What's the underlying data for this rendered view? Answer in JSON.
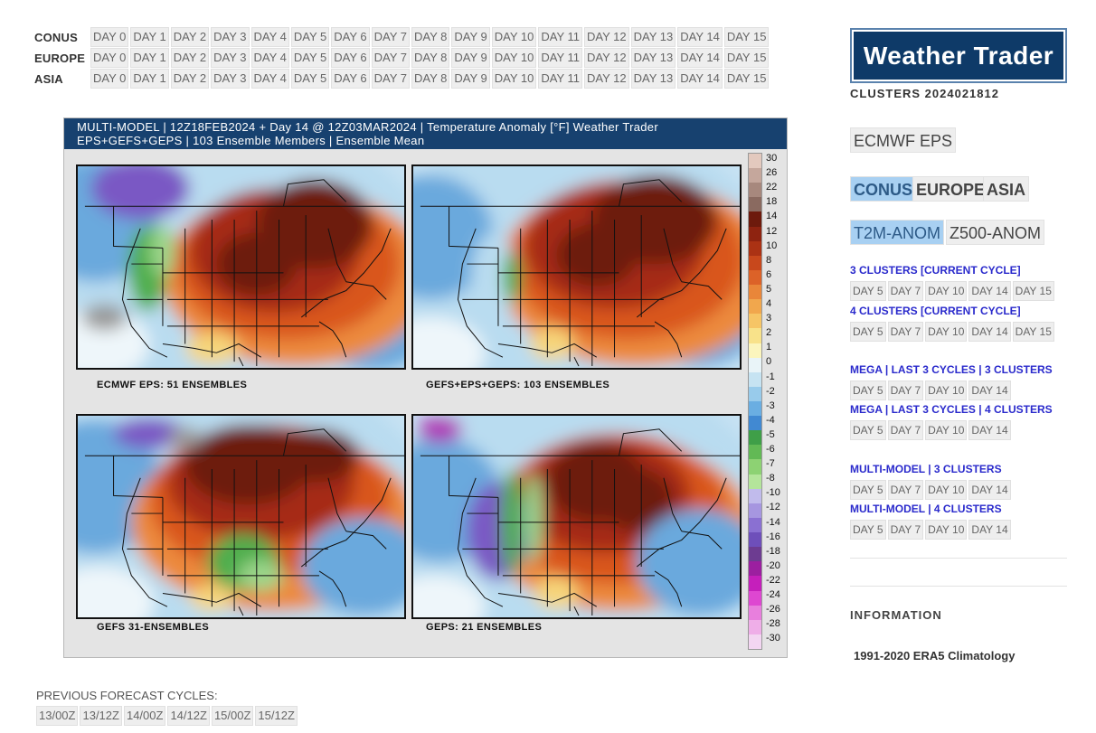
{
  "nav": {
    "days": [
      "DAY 0",
      "DAY 1",
      "DAY 2",
      "DAY 3",
      "DAY 4",
      "DAY 5",
      "DAY 6",
      "DAY 7",
      "DAY 8",
      "DAY 9",
      "DAY 10",
      "DAY 11",
      "DAY 12",
      "DAY 13",
      "DAY 14",
      "DAY 15"
    ],
    "regions": [
      "CONUS",
      "EUROPE",
      "ASIA"
    ]
  },
  "figure": {
    "header_line1": "MULTI-MODEL | 12Z18FEB2024 + Day 14 @ 12Z03MAR2024 | Temperature Anomaly [°F] Weather Trader",
    "header_line2": "EPS+GEFS+GEPS | 103 Ensemble Members | Ensemble Mean",
    "panels": [
      {
        "label": "ECMWF EPS: 51 ENSEMBLES"
      },
      {
        "label": "GEFS+EPS+GEPS: 103 ENSEMBLES"
      },
      {
        "label": "GEFS 31-ENSEMBLES"
      },
      {
        "label": "GEPS: 21 ENSEMBLES"
      }
    ],
    "colorbar": {
      "labels": [
        "30",
        "26",
        "22",
        "18",
        "14",
        "12",
        "10",
        "8",
        "6",
        "5",
        "4",
        "3",
        "2",
        "1",
        "0",
        "-1",
        "-2",
        "-3",
        "-4",
        "-5",
        "-6",
        "-7",
        "-8",
        "-10",
        "-12",
        "-14",
        "-16",
        "-18",
        "-20",
        "-22",
        "-24",
        "-26",
        "-28",
        "-30"
      ],
      "colors": [
        "#e3c9be",
        "#c5a79c",
        "#a7887d",
        "#8a6a60",
        "#6d1a0c",
        "#8e2310",
        "#ab3214",
        "#c8481c",
        "#dc6228",
        "#e98639",
        "#f1a74d",
        "#f6c566",
        "#f8e28a",
        "#fbf5bd",
        "#e9f4f8",
        "#c6e3f2",
        "#98cbeb",
        "#6aaee2",
        "#4189d2",
        "#3f9f48",
        "#62b955",
        "#8dd273",
        "#b4e59b",
        "#c1bbec",
        "#a696e0",
        "#8a70d2",
        "#6e4fba",
        "#6d3c91",
        "#9c1fa0",
        "#c51fbb",
        "#de47d1",
        "#e87fdd",
        "#efaee8",
        "#f3d6f2"
      ]
    }
  },
  "prev_cycles": {
    "title": "PREVIOUS FORECAST CYCLES:",
    "items": [
      "13/00Z",
      "13/12Z",
      "14/00Z",
      "14/12Z",
      "15/00Z",
      "15/12Z"
    ]
  },
  "sidebar": {
    "logo": "Weather Trader",
    "clusters_title": "CLUSTERS 2024021812",
    "model_btn": "ECMWF EPS",
    "region_btns": [
      "CONUS",
      "EUROPE",
      "ASIA"
    ],
    "var_btns": [
      "T2M-ANOM",
      "Z500-ANOM"
    ],
    "groups": [
      {
        "title": "3 CLUSTERS [CURRENT CYCLE]",
        "days": [
          "DAY 5",
          "DAY 7",
          "DAY 10",
          "DAY 14",
          "DAY 15"
        ]
      },
      {
        "title": "4 CLUSTERS [CURRENT CYCLE]",
        "days": [
          "DAY 5",
          "DAY 7",
          "DAY 10",
          "DAY 14",
          "DAY 15"
        ]
      },
      {
        "title": "MEGA | LAST 3 CYCLES | 3 CLUSTERS",
        "days": [
          "DAY 5",
          "DAY 7",
          "DAY 10",
          "DAY 14"
        ]
      },
      {
        "title": "MEGA | LAST 3 CYCLES | 4 CLUSTERS",
        "days": [
          "DAY 5",
          "DAY 7",
          "DAY 10",
          "DAY 14"
        ]
      },
      {
        "title": "MULTI-MODEL | 3 CLUSTERS",
        "days": [
          "DAY 5",
          "DAY 7",
          "DAY 10",
          "DAY 14"
        ]
      },
      {
        "title": "MULTI-MODEL | 4 CLUSTERS",
        "days": [
          "DAY 5",
          "DAY 7",
          "DAY 10",
          "DAY 14"
        ]
      }
    ],
    "info_title": "INFORMATION",
    "climatology": "1991-2020 ERA5 Climatology"
  }
}
